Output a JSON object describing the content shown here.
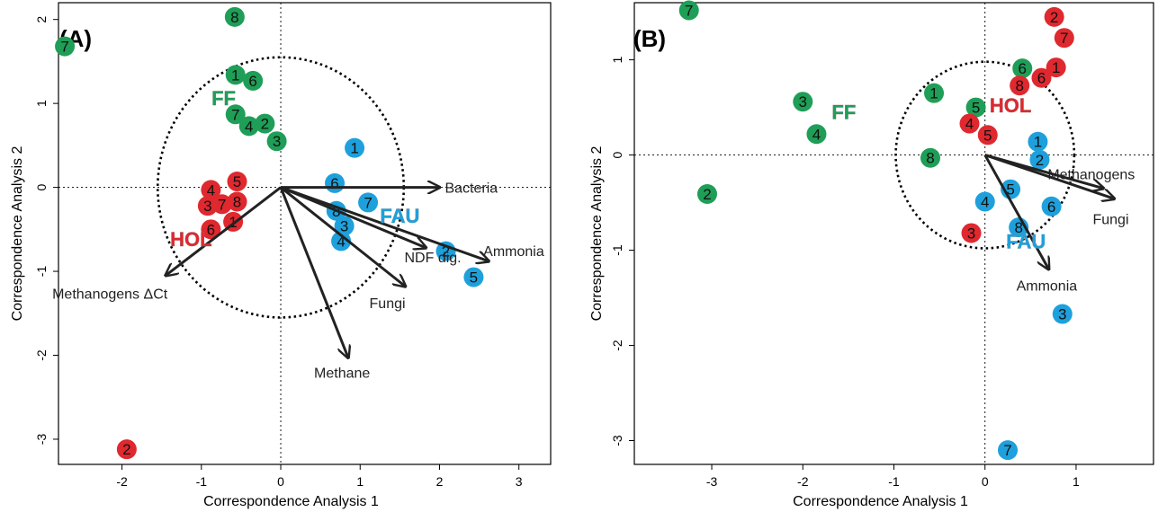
{
  "colors": {
    "FF": "#1f9e57",
    "HOL": "#e0282f",
    "FAU": "#1ea0dc"
  },
  "chart_data": [
    {
      "type": "scatter",
      "panel_label": "(A)",
      "xlabel": "Correspondence Analysis 1",
      "ylabel": "Correspondence Analysis 2",
      "xlim": [
        -2.8,
        3.4
      ],
      "ylim": [
        -3.3,
        2.2
      ],
      "xticks": [
        "-2",
        "-1",
        "0",
        "1",
        "2",
        "3"
      ],
      "yticks": [
        "-3",
        "-2",
        "-1",
        "0",
        "1",
        "2"
      ],
      "circle_radius": 1.55,
      "groups": [
        {
          "name": "FF",
          "label_x": -0.72,
          "label_y": 0.98
        },
        {
          "name": "HOL",
          "label_x": -1.13,
          "label_y": -0.7
        },
        {
          "name": "FAU",
          "label_x": 1.5,
          "label_y": -0.42
        }
      ],
      "points": [
        {
          "group": "FF",
          "label": "8",
          "x": -0.58,
          "y": 2.03
        },
        {
          "group": "FF",
          "label": "7",
          "x": -2.72,
          "y": 1.68
        },
        {
          "group": "FF",
          "label": "1",
          "x": -0.57,
          "y": 1.34
        },
        {
          "group": "FF",
          "label": "6",
          "x": -0.35,
          "y": 1.27
        },
        {
          "group": "FF",
          "label": "7",
          "x": -0.57,
          "y": 0.87
        },
        {
          "group": "FF",
          "label": "4",
          "x": -0.4,
          "y": 0.73
        },
        {
          "group": "FF",
          "label": "2",
          "x": -0.2,
          "y": 0.76
        },
        {
          "group": "FF",
          "label": "3",
          "x": -0.05,
          "y": 0.55
        },
        {
          "group": "HOL",
          "label": "5",
          "x": -0.55,
          "y": 0.07
        },
        {
          "group": "HOL",
          "label": "4",
          "x": -0.88,
          "y": -0.03
        },
        {
          "group": "HOL",
          "label": "3",
          "x": -0.92,
          "y": -0.22
        },
        {
          "group": "HOL",
          "label": "7",
          "x": -0.74,
          "y": -0.2
        },
        {
          "group": "HOL",
          "label": "8",
          "x": -0.55,
          "y": -0.17
        },
        {
          "group": "HOL",
          "label": "6",
          "x": -0.88,
          "y": -0.5
        },
        {
          "group": "HOL",
          "label": "1",
          "x": -0.6,
          "y": -0.41
        },
        {
          "group": "HOL",
          "label": "2",
          "x": -1.94,
          "y": -3.12
        },
        {
          "group": "FAU",
          "label": "1",
          "x": 0.93,
          "y": 0.47
        },
        {
          "group": "FAU",
          "label": "6",
          "x": 0.68,
          "y": 0.05
        },
        {
          "group": "FAU",
          "label": "7",
          "x": 1.1,
          "y": -0.18
        },
        {
          "group": "FAU",
          "label": "8",
          "x": 0.7,
          "y": -0.28
        },
        {
          "group": "FAU",
          "label": "3",
          "x": 0.8,
          "y": -0.46
        },
        {
          "group": "FAU",
          "label": "4",
          "x": 0.76,
          "y": -0.64
        },
        {
          "group": "FAU",
          "label": "2",
          "x": 2.08,
          "y": -0.76
        },
        {
          "group": "FAU",
          "label": "5",
          "x": 2.43,
          "y": -1.07
        }
      ],
      "vectors": [
        {
          "label": "Bacteria",
          "x": 2.0,
          "y": 0.0
        },
        {
          "label": "Ammonia",
          "x": 2.62,
          "y": -0.88
        },
        {
          "label": "NDF dig.",
          "x": 1.83,
          "y": -0.72
        },
        {
          "label": "Fungi",
          "x": 1.57,
          "y": -1.18
        },
        {
          "label": "Methane",
          "x": 0.85,
          "y": -2.03
        },
        {
          "label": "Methanogens ΔCt",
          "x": -1.45,
          "y": -1.05
        }
      ]
    },
    {
      "type": "scatter",
      "panel_label": "(B)",
      "xlabel": "Correspondence Analysis 1",
      "ylabel": "Correspondence Analysis 2",
      "xlim": [
        -3.85,
        1.85
      ],
      "ylim": [
        -3.25,
        1.6
      ],
      "xticks": [
        "-3",
        "-2",
        "-1",
        "0",
        "1"
      ],
      "yticks": [
        "-3",
        "-2",
        "-1",
        "0",
        "1"
      ],
      "circle_radius": 0.98,
      "groups": [
        {
          "name": "FF",
          "label_x": -1.55,
          "label_y": 0.38
        },
        {
          "name": "HOL",
          "label_x": 0.28,
          "label_y": 0.45
        },
        {
          "name": "FAU",
          "label_x": 0.45,
          "label_y": -0.98
        }
      ],
      "points": [
        {
          "group": "FF",
          "label": "7",
          "x": -3.25,
          "y": 1.52
        },
        {
          "group": "FF",
          "label": "3",
          "x": -2.0,
          "y": 0.56
        },
        {
          "group": "FF",
          "label": "4",
          "x": -1.85,
          "y": 0.22
        },
        {
          "group": "FF",
          "label": "2",
          "x": -3.05,
          "y": -0.41
        },
        {
          "group": "FF",
          "label": "1",
          "x": -0.56,
          "y": 0.65
        },
        {
          "group": "FF",
          "label": "5",
          "x": -0.1,
          "y": 0.5
        },
        {
          "group": "FF",
          "label": "6",
          "x": 0.41,
          "y": 0.91
        },
        {
          "group": "FF",
          "label": "8",
          "x": -0.6,
          "y": -0.03
        },
        {
          "group": "HOL",
          "label": "2",
          "x": 0.76,
          "y": 1.45
        },
        {
          "group": "HOL",
          "label": "7",
          "x": 0.87,
          "y": 1.23
        },
        {
          "group": "HOL",
          "label": "1",
          "x": 0.78,
          "y": 0.92
        },
        {
          "group": "HOL",
          "label": "6",
          "x": 0.62,
          "y": 0.81
        },
        {
          "group": "HOL",
          "label": "8",
          "x": 0.38,
          "y": 0.73
        },
        {
          "group": "HOL",
          "label": "4",
          "x": -0.17,
          "y": 0.33
        },
        {
          "group": "HOL",
          "label": "5",
          "x": 0.03,
          "y": 0.21
        },
        {
          "group": "HOL",
          "label": "3",
          "x": -0.15,
          "y": -0.82
        },
        {
          "group": "FAU",
          "label": "1",
          "x": 0.58,
          "y": 0.14
        },
        {
          "group": "FAU",
          "label": "2",
          "x": 0.6,
          "y": -0.05
        },
        {
          "group": "FAU",
          "label": "5",
          "x": 0.28,
          "y": -0.36
        },
        {
          "group": "FAU",
          "label": "4",
          "x": 0.0,
          "y": -0.49
        },
        {
          "group": "FAU",
          "label": "6",
          "x": 0.73,
          "y": -0.54
        },
        {
          "group": "FAU",
          "label": "8",
          "x": 0.37,
          "y": -0.76
        },
        {
          "group": "FAU",
          "label": "3",
          "x": 0.85,
          "y": -1.67
        },
        {
          "group": "FAU",
          "label": "7",
          "x": 0.25,
          "y": -3.1
        }
      ],
      "vectors": [
        {
          "label": "Methanogens",
          "x": 1.3,
          "y": -0.35
        },
        {
          "label": "Fungi",
          "x": 1.42,
          "y": -0.46
        },
        {
          "label": "Ammonia",
          "x": 0.7,
          "y": -1.2
        }
      ]
    }
  ]
}
